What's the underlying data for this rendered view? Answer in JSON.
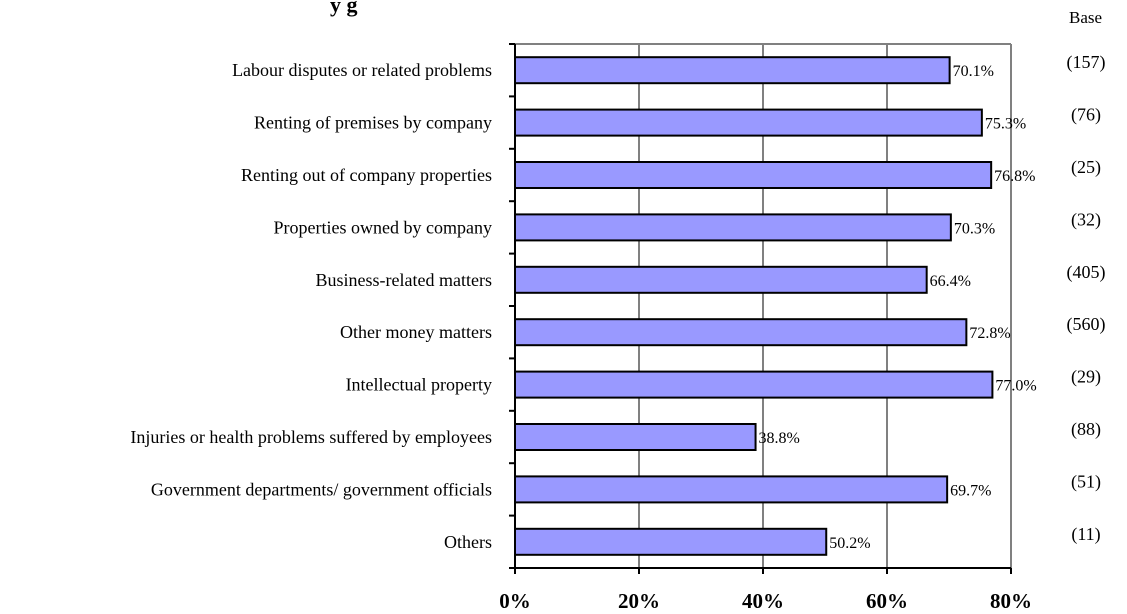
{
  "title_fragment": "y         g",
  "base_header": "Base",
  "chart_data": {
    "type": "bar",
    "orientation": "horizontal",
    "categories": [
      "Labour disputes or related problems",
      "Renting of premises by company",
      "Renting out of company properties",
      "Properties owned by company",
      "Business-related matters",
      "Other money matters",
      "Intellectual property",
      "Injuries or health problems suffered by employees",
      "Government departments/ government officials",
      "Others"
    ],
    "values": [
      70.1,
      75.3,
      76.8,
      70.3,
      66.4,
      72.8,
      77.0,
      38.8,
      69.7,
      50.2
    ],
    "value_labels": [
      "70.1%",
      "75.3%",
      "76.8%",
      "70.3%",
      "66.4%",
      "72.8%",
      "77.0%",
      "38.8%",
      "69.7%",
      "50.2%"
    ],
    "bases": [
      "(157)",
      "(76)",
      "(25)",
      "(32)",
      "(405)",
      "(560)",
      "(29)",
      "(88)",
      "(51)",
      "(11)"
    ],
    "xlim": [
      0,
      80
    ],
    "xticks": [
      0,
      20,
      40,
      60,
      80
    ],
    "xtick_labels": [
      "0%",
      "20%",
      "40%",
      "60%",
      "80%"
    ],
    "grid": "vertical",
    "bar_color": "#9999ff",
    "bar_border": "#000000",
    "xlabel": "",
    "ylabel": ""
  }
}
